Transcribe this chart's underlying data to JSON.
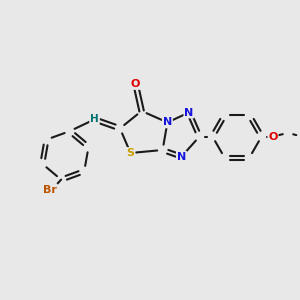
{
  "background_color": "#e8e8e8",
  "bond_color": "#1a1a1a",
  "atom_colors": {
    "O": "#dd0000",
    "N": "#1414dd",
    "S": "#c8a000",
    "Br": "#bb5500",
    "H": "#007070",
    "C": "#1a1a1a"
  },
  "bond_lw": 1.5,
  "fontsize": 8.0,
  "figsize": [
    3.0,
    3.0
  ],
  "dpi": 100
}
